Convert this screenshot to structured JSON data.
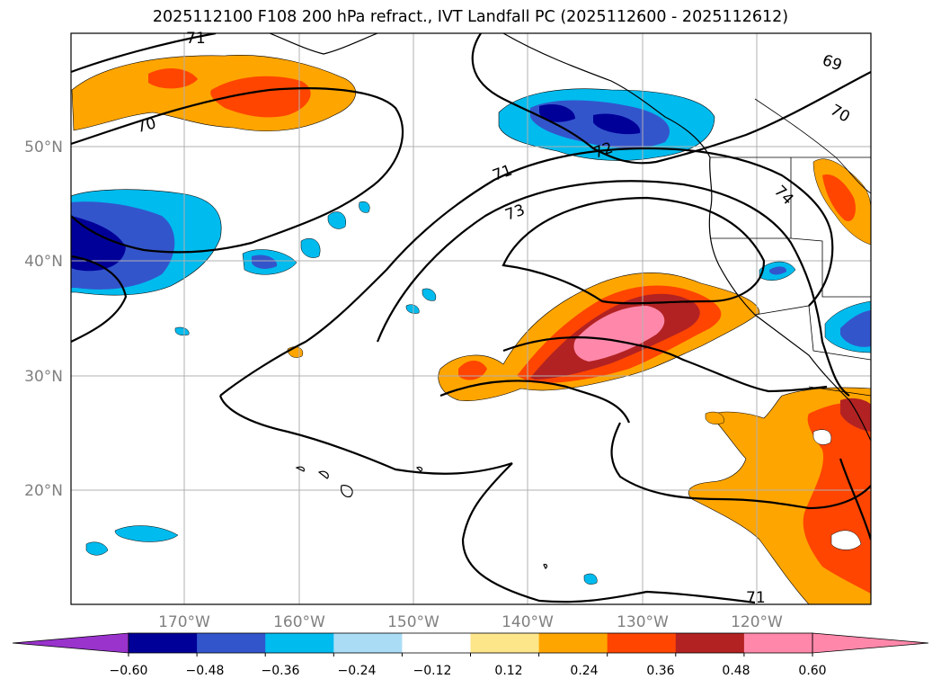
{
  "title": "2025112100 F108 200 hPa refract., IVT Landfall PC (2025112600 - 2025112612)",
  "map": {
    "lon_labels": [
      "170°W",
      "160°W",
      "150°W",
      "140°W",
      "130°W",
      "120°W"
    ],
    "lat_labels": [
      "50°N",
      "40°N",
      "30°N",
      "20°N"
    ],
    "contour_labels": [
      "69",
      "70",
      "70",
      "71",
      "71",
      "71",
      "72",
      "73",
      "74"
    ]
  },
  "colorbar": {
    "ticks": [
      "−0.60",
      "−0.48",
      "−0.36",
      "−0.24",
      "−0.12",
      "0.12",
      "0.24",
      "0.36",
      "0.48",
      "0.60"
    ],
    "colors": [
      "#9933cc",
      "#000099",
      "#3355cc",
      "#00bbee",
      "#aaddf5",
      "#ffffff",
      "#fde68a",
      "#ffa500",
      "#ff4500",
      "#b22222",
      "#ff88aa",
      "#ff88aa"
    ]
  }
}
